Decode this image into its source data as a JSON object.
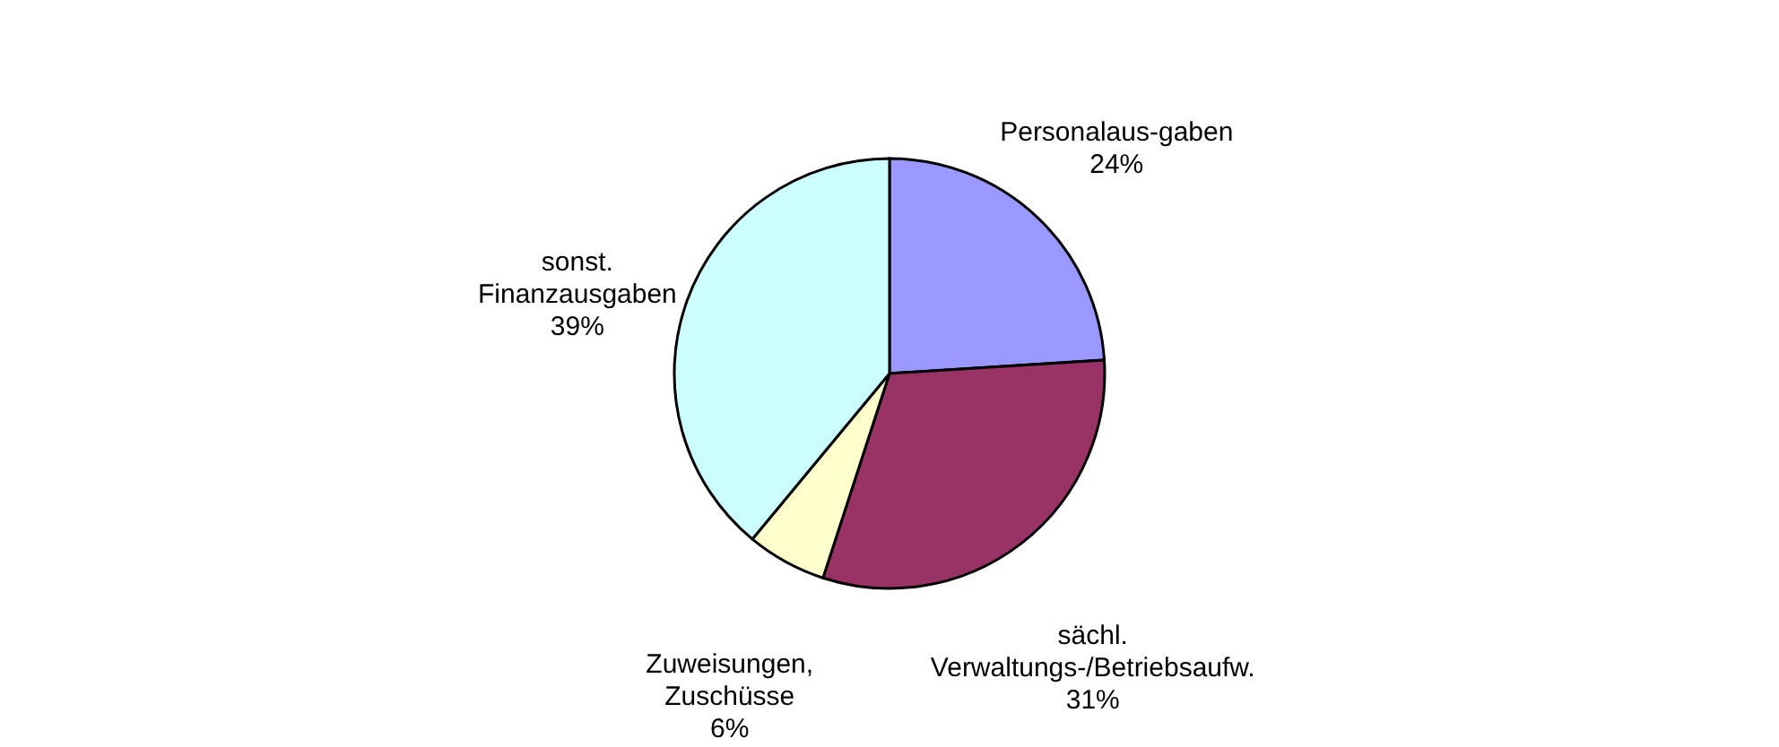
{
  "chart_data": {
    "type": "pie",
    "categories": [
      "Personalaus-gaben",
      "sächl. Verwaltungs-/Betriebsaufw.",
      "Zuweisungen, Zuschüsse",
      "sonst. Finanzausgaben"
    ],
    "values": [
      24,
      31,
      6,
      39
    ],
    "value_labels": [
      "24%",
      "31%",
      "6%",
      "39%"
    ],
    "colors": [
      "#9999ff",
      "#993366",
      "#ffffcc",
      "#ccffff"
    ]
  }
}
